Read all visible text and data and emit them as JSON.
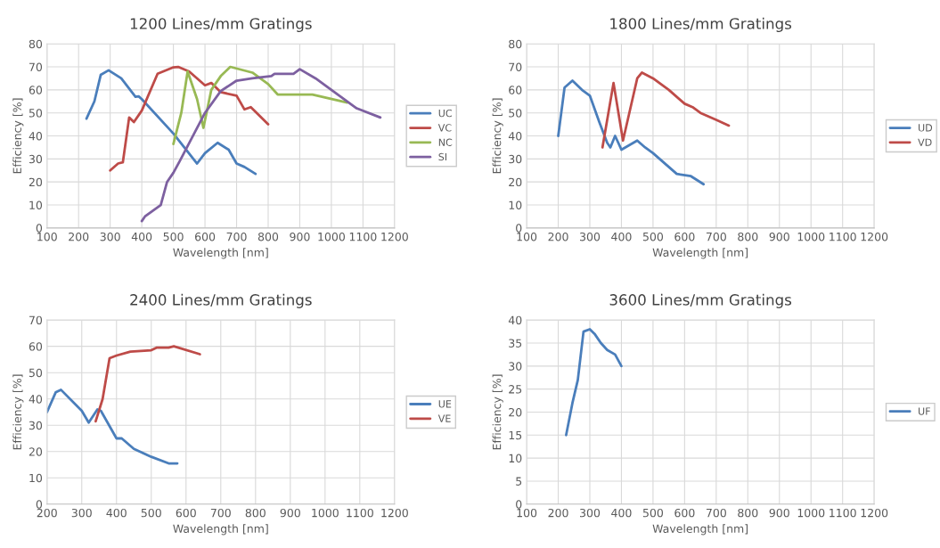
{
  "chart_data": [
    {
      "type": "line",
      "title": "1200 Lines/mm Gratings",
      "xlabel": "Wavelength [nm]",
      "ylabel": "Efficiency [%]",
      "xlim": [
        100,
        1200
      ],
      "xticks": [
        100,
        200,
        300,
        400,
        500,
        600,
        700,
        800,
        900,
        1000,
        1100,
        1200
      ],
      "ylim": [
        0,
        80
      ],
      "yticks": [
        0,
        10,
        20,
        30,
        40,
        50,
        60,
        70,
        80
      ],
      "grid": true,
      "legend": "right",
      "series": [
        {
          "name": "UC",
          "color": "#4a7ebb",
          "x": [
            225,
            250,
            270,
            295,
            335,
            380,
            390,
            400,
            500,
            575,
            600,
            640,
            675,
            700,
            725,
            760
          ],
          "values": [
            47.5,
            55,
            66.5,
            68.5,
            65,
            57,
            57.2,
            56,
            41,
            28,
            32.5,
            37,
            34,
            28,
            26.5,
            23.5
          ]
        },
        {
          "name": "VC",
          "color": "#be4b48",
          "x": [
            300,
            325,
            340,
            360,
            375,
            400,
            450,
            500,
            515,
            550,
            600,
            620,
            650,
            700,
            725,
            745,
            800
          ],
          "values": [
            25,
            28,
            28.5,
            48,
            46,
            51,
            67,
            69.8,
            70,
            68,
            62,
            63,
            59,
            57.5,
            51.5,
            52.5,
            45
          ]
        },
        {
          "name": "NC",
          "color": "#98b954",
          "x": [
            500,
            525,
            545,
            575,
            595,
            620,
            650,
            680,
            750,
            800,
            830,
            940,
            1050
          ],
          "values": [
            36.5,
            50,
            68,
            56,
            43.5,
            60,
            66,
            70,
            67.5,
            62.5,
            58,
            58,
            54.5
          ]
        },
        {
          "name": "SI",
          "color": "#7d60a0",
          "x": [
            400,
            410,
            460,
            480,
            500,
            520,
            600,
            650,
            700,
            750,
            810,
            820,
            880,
            900,
            950,
            1000,
            1080,
            1155
          ],
          "values": [
            3,
            5,
            10,
            20,
            24,
            29,
            50,
            59.5,
            64,
            65,
            66,
            67,
            67,
            69,
            65,
            60,
            52,
            48
          ]
        }
      ]
    },
    {
      "type": "line",
      "title": "1800 Lines/mm Gratings",
      "xlabel": "Wavelength [nm]",
      "ylabel": "Efficiency [%]",
      "xlim": [
        100,
        1200
      ],
      "xticks": [
        100,
        200,
        300,
        400,
        500,
        600,
        700,
        800,
        900,
        1000,
        1100,
        1200
      ],
      "ylim": [
        0,
        80
      ],
      "yticks": [
        0,
        10,
        20,
        30,
        40,
        50,
        60,
        70,
        80
      ],
      "grid": true,
      "legend": "right",
      "series": [
        {
          "name": "UD",
          "color": "#4a7ebb",
          "x": [
            200,
            220,
            245,
            275,
            300,
            330,
            355,
            365,
            380,
            400,
            450,
            475,
            500,
            575,
            620,
            660
          ],
          "values": [
            40,
            61,
            64,
            60,
            57.5,
            46,
            37,
            35,
            40,
            34,
            38,
            35,
            32.5,
            23.5,
            22.5,
            19
          ]
        },
        {
          "name": "VD",
          "color": "#be4b48",
          "x": [
            340,
            375,
            405,
            440,
            450,
            465,
            500,
            550,
            600,
            625,
            650,
            700,
            740
          ],
          "values": [
            35,
            63,
            38,
            59,
            65,
            67.5,
            65,
            60,
            54,
            52.5,
            50,
            47,
            44.5
          ]
        }
      ]
    },
    {
      "type": "line",
      "title": "2400 Lines/mm Gratings",
      "xlabel": "Wavelength [nm]",
      "ylabel": "Efficiency [%]",
      "xlim": [
        200,
        1200
      ],
      "xticks": [
        200,
        300,
        400,
        500,
        600,
        700,
        800,
        900,
        1000,
        1100,
        1200
      ],
      "ylim": [
        0,
        70
      ],
      "yticks": [
        0,
        10,
        20,
        30,
        40,
        50,
        60,
        70
      ],
      "grid": true,
      "legend": "right",
      "series": [
        {
          "name": "UE",
          "color": "#4a7ebb",
          "x": [
            200,
            225,
            240,
            300,
            320,
            345,
            355,
            400,
            415,
            450,
            500,
            550,
            575
          ],
          "values": [
            35,
            42.5,
            43.5,
            35.5,
            31,
            36,
            35.5,
            25,
            25,
            21,
            18,
            15.5,
            15.5
          ]
        },
        {
          "name": "VE",
          "color": "#be4b48",
          "x": [
            340,
            360,
            380,
            400,
            440,
            500,
            515,
            550,
            565,
            640
          ],
          "values": [
            31.5,
            40,
            55.5,
            56.5,
            58,
            58.5,
            59.5,
            59.5,
            60,
            57
          ]
        }
      ]
    },
    {
      "type": "line",
      "title": "3600 Lines/mm Gratings",
      "xlabel": "Wavelength [nm]",
      "ylabel": "Efficiency [%]",
      "xlim": [
        100,
        1200
      ],
      "xticks": [
        100,
        200,
        300,
        400,
        500,
        600,
        700,
        800,
        900,
        1000,
        1100,
        1200
      ],
      "ylim": [
        0,
        40
      ],
      "yticks": [
        0,
        5,
        10,
        15,
        20,
        25,
        30,
        35,
        40
      ],
      "grid": true,
      "legend": "right",
      "series": [
        {
          "name": "UF",
          "color": "#4a7ebb",
          "x": [
            225,
            245,
            262,
            280,
            300,
            315,
            335,
            355,
            380,
            400
          ],
          "values": [
            15,
            22,
            27,
            37.5,
            38,
            37,
            35,
            33.5,
            32.5,
            30
          ]
        }
      ]
    }
  ]
}
